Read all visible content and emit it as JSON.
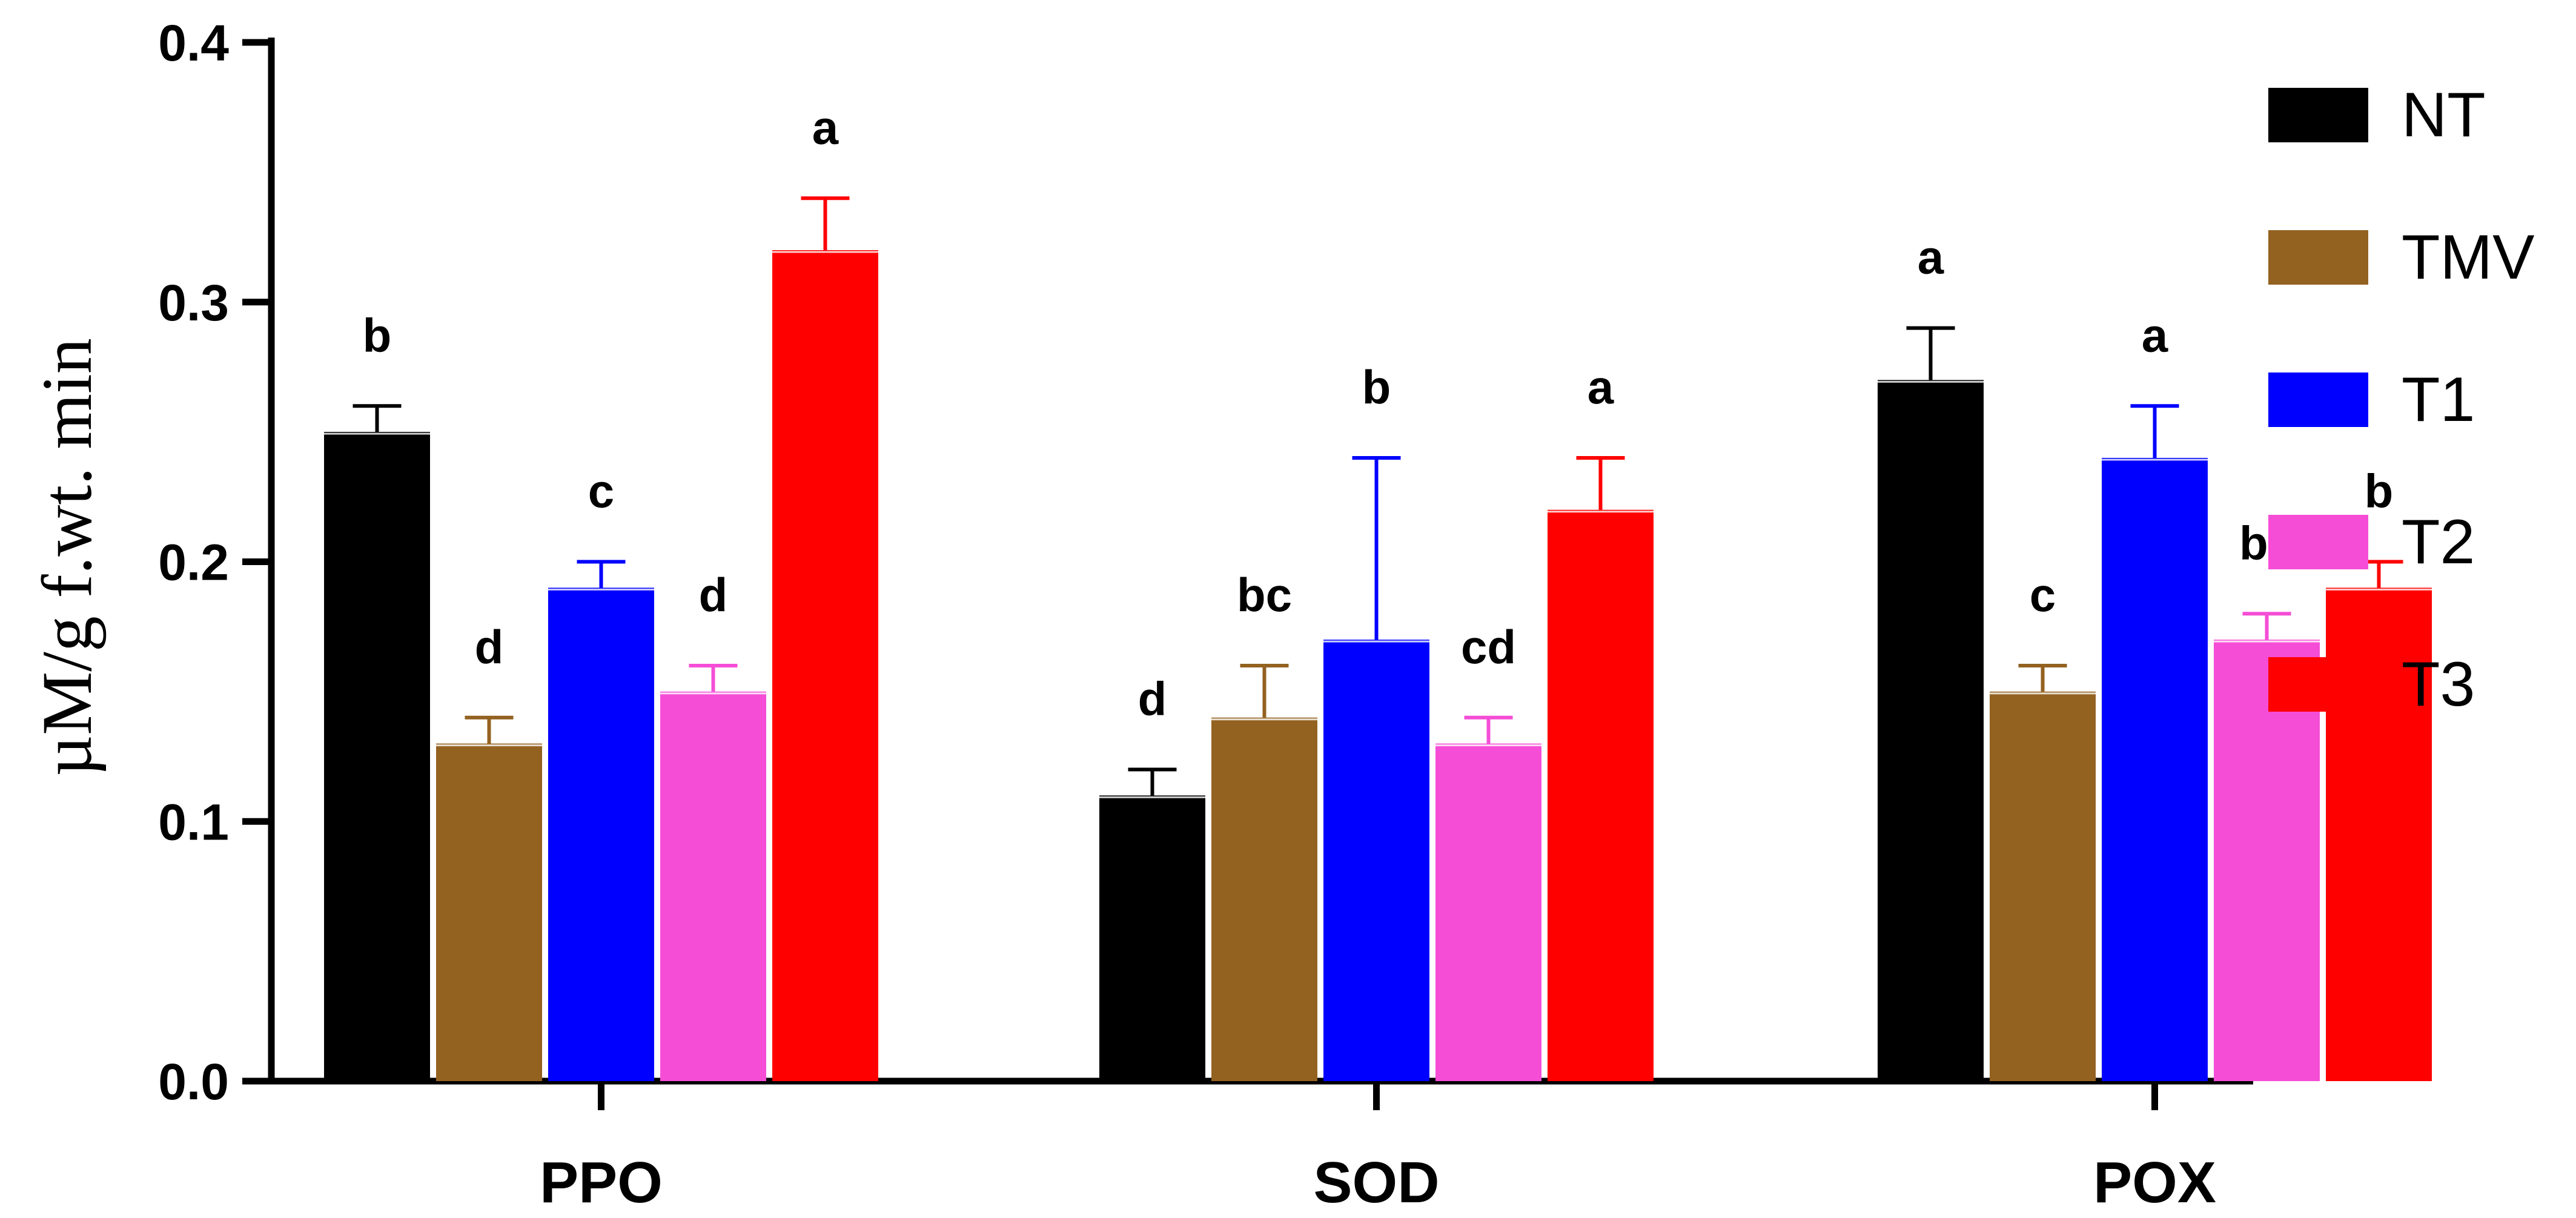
{
  "chart_data": {
    "type": "bar",
    "title": "",
    "xlabel": "",
    "ylabel": "µM/g f.wt. min",
    "ylim": [
      0,
      0.4
    ],
    "yticks": [
      "0.0",
      "0.1",
      "0.2",
      "0.3",
      "0.4"
    ],
    "categories": [
      "PPO",
      "SOD",
      "POX"
    ],
    "legend_position": "right",
    "series": [
      {
        "name": "NT",
        "color": "#000000",
        "values": [
          0.25,
          0.11,
          0.27
        ],
        "errors": [
          0.01,
          0.01,
          0.02
        ],
        "labels": [
          "b",
          "d",
          "a"
        ]
      },
      {
        "name": "TMV",
        "color": "#936120",
        "values": [
          0.13,
          0.14,
          0.15
        ],
        "errors": [
          0.01,
          0.02,
          0.01
        ],
        "labels": [
          "d",
          "bc",
          "c"
        ]
      },
      {
        "name": "T1",
        "color": "#0000FF",
        "values": [
          0.19,
          0.17,
          0.24
        ],
        "errors": [
          0.01,
          0.07,
          0.02
        ],
        "labels": [
          "c",
          "b",
          "a"
        ]
      },
      {
        "name": "T2",
        "color": "#F54DD6",
        "values": [
          0.15,
          0.13,
          0.17
        ],
        "errors": [
          0.01,
          0.01,
          0.01
        ],
        "labels": [
          "d",
          "cd",
          "bc"
        ]
      },
      {
        "name": "T3",
        "color": "#FF0000",
        "values": [
          0.32,
          0.22,
          0.19
        ],
        "errors": [
          0.02,
          0.02,
          0.01
        ],
        "labels": [
          "a",
          "a",
          "b"
        ]
      }
    ]
  }
}
